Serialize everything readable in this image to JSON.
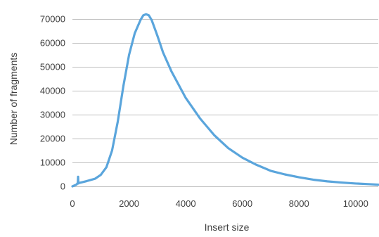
{
  "chart_data": {
    "type": "line",
    "title": "",
    "xlabel": "Insert size",
    "ylabel": "Number of fragments",
    "xlim": [
      0,
      10800
    ],
    "ylim": [
      0,
      75000
    ],
    "x_ticks": [
      0,
      2000,
      4000,
      6000,
      8000,
      10000
    ],
    "y_ticks": [
      0,
      10000,
      20000,
      30000,
      40000,
      50000,
      60000,
      70000
    ],
    "x_tick_labels": [
      "0",
      "2000",
      "4000",
      "6000",
      "8000",
      "10000"
    ],
    "y_tick_labels": [
      "0",
      "10000",
      "20000",
      "30000",
      "40000",
      "50000",
      "60000",
      "70000"
    ],
    "grid": "horizontal",
    "legend": "none",
    "colors": {
      "series": "#5aa5dc",
      "grid": "#bfbfbf",
      "text": "#404040"
    },
    "series": [
      {
        "x": [
          0,
          150,
          190,
          200,
          210,
          230,
          300,
          500,
          800,
          1000,
          1200,
          1400,
          1600,
          1800,
          2000,
          2200,
          2400,
          2500,
          2600,
          2700,
          2800,
          3000,
          3200,
          3500,
          4000,
          4500,
          5000,
          5500,
          6000,
          6500,
          7000,
          7500,
          8000,
          8500,
          9000,
          9500,
          10000,
          10500,
          10800
        ],
        "y": [
          0,
          800,
          1500,
          4000,
          1200,
          1400,
          1600,
          2200,
          3200,
          4800,
          8000,
          15000,
          27000,
          42000,
          55000,
          64000,
          69500,
          71500,
          72000,
          71500,
          69500,
          63000,
          56000,
          48000,
          37000,
          28500,
          21500,
          16000,
          12000,
          9000,
          6500,
          5000,
          3800,
          2800,
          2100,
          1600,
          1200,
          900,
          700
        ]
      }
    ]
  }
}
